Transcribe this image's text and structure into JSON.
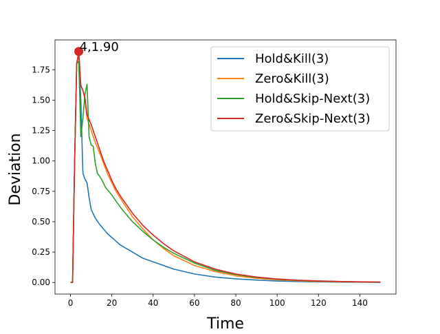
{
  "chart_data": {
    "type": "line",
    "title": "",
    "xlabel": "Time",
    "ylabel": "Deviation",
    "xlim": [
      -7.5,
      157.5
    ],
    "ylim": [
      -0.095,
      1.995
    ],
    "xticks": [
      0,
      20,
      40,
      60,
      80,
      100,
      120,
      140
    ],
    "yticks": [
      0.0,
      0.25,
      0.5,
      0.75,
      1.0,
      1.25,
      1.5,
      1.75
    ],
    "ytick_labels": [
      "0.00",
      "0.25",
      "0.50",
      "0.75",
      "1.00",
      "1.25",
      "1.50",
      "1.75"
    ],
    "grid": false,
    "legend_position": "top-right",
    "series": [
      {
        "name": "Hold&Kill(3)",
        "color": "#1f77b4",
        "points": [
          [
            0,
            0
          ],
          [
            1,
            0
          ],
          [
            2,
            1.0
          ],
          [
            3,
            1.8
          ],
          [
            4,
            1.88
          ],
          [
            5,
            1.5
          ],
          [
            6,
            0.9
          ],
          [
            7,
            0.85
          ],
          [
            8,
            0.82
          ],
          [
            9,
            0.7
          ],
          [
            10,
            0.6
          ],
          [
            12,
            0.53
          ],
          [
            14,
            0.48
          ],
          [
            16,
            0.44
          ],
          [
            18,
            0.4
          ],
          [
            20,
            0.37
          ],
          [
            22,
            0.34
          ],
          [
            24,
            0.31
          ],
          [
            26,
            0.29
          ],
          [
            30,
            0.25
          ],
          [
            35,
            0.2
          ],
          [
            40,
            0.17
          ],
          [
            50,
            0.11
          ],
          [
            60,
            0.07
          ],
          [
            70,
            0.045
          ],
          [
            80,
            0.03
          ],
          [
            90,
            0.02
          ],
          [
            100,
            0.012
          ],
          [
            110,
            0.008
          ],
          [
            120,
            0.005
          ],
          [
            130,
            0.003
          ],
          [
            140,
            0.002
          ],
          [
            150,
            0.001
          ]
        ]
      },
      {
        "name": "Zero&Kill(3)",
        "color": "#ff7f0e",
        "points": [
          [
            0,
            0
          ],
          [
            1,
            0
          ],
          [
            2,
            1.0
          ],
          [
            3,
            1.8
          ],
          [
            4,
            1.88
          ],
          [
            5,
            1.62
          ],
          [
            6,
            1.58
          ],
          [
            7,
            1.5
          ],
          [
            8,
            1.35
          ],
          [
            10,
            1.25
          ],
          [
            12,
            1.15
          ],
          [
            14,
            1.07
          ],
          [
            16,
            0.98
          ],
          [
            18,
            0.89
          ],
          [
            20,
            0.82
          ],
          [
            22,
            0.75
          ],
          [
            25,
            0.67
          ],
          [
            30,
            0.54
          ],
          [
            35,
            0.44
          ],
          [
            40,
            0.35
          ],
          [
            45,
            0.28
          ],
          [
            50,
            0.22
          ],
          [
            60,
            0.14
          ],
          [
            70,
            0.09
          ],
          [
            80,
            0.055
          ],
          [
            90,
            0.035
          ],
          [
            100,
            0.022
          ],
          [
            110,
            0.014
          ],
          [
            120,
            0.009
          ],
          [
            130,
            0.006
          ],
          [
            140,
            0.004
          ],
          [
            150,
            0.003
          ]
        ]
      },
      {
        "name": "Hold&Skip-Next(3)",
        "color": "#2ca02c",
        "points": [
          [
            0,
            0
          ],
          [
            1,
            0
          ],
          [
            2,
            1.0
          ],
          [
            3,
            1.8
          ],
          [
            4,
            1.82
          ],
          [
            5,
            1.2
          ],
          [
            6,
            1.35
          ],
          [
            7,
            1.55
          ],
          [
            8,
            1.63
          ],
          [
            9,
            1.2
          ],
          [
            10,
            1.13
          ],
          [
            11,
            1.12
          ],
          [
            12,
            0.98
          ],
          [
            13,
            0.9
          ],
          [
            15,
            0.85
          ],
          [
            17,
            0.78
          ],
          [
            20,
            0.72
          ],
          [
            22,
            0.67
          ],
          [
            25,
            0.6
          ],
          [
            30,
            0.5
          ],
          [
            35,
            0.42
          ],
          [
            40,
            0.35
          ],
          [
            45,
            0.29
          ],
          [
            50,
            0.24
          ],
          [
            60,
            0.16
          ],
          [
            70,
            0.1
          ],
          [
            80,
            0.065
          ],
          [
            90,
            0.042
          ],
          [
            100,
            0.027
          ],
          [
            110,
            0.018
          ],
          [
            120,
            0.012
          ],
          [
            130,
            0.008
          ],
          [
            140,
            0.005
          ],
          [
            150,
            0.003
          ]
        ]
      },
      {
        "name": "Zero&Skip-Next(3)",
        "color": "#d62728",
        "points": [
          [
            0,
            0
          ],
          [
            1,
            0
          ],
          [
            2,
            1.0
          ],
          [
            3,
            1.8
          ],
          [
            4,
            1.9
          ],
          [
            5,
            1.62
          ],
          [
            6,
            1.58
          ],
          [
            7,
            1.52
          ],
          [
            8,
            1.38
          ],
          [
            10,
            1.3
          ],
          [
            12,
            1.2
          ],
          [
            14,
            1.1
          ],
          [
            16,
            1.0
          ],
          [
            18,
            0.92
          ],
          [
            20,
            0.84
          ],
          [
            22,
            0.77
          ],
          [
            25,
            0.69
          ],
          [
            30,
            0.57
          ],
          [
            35,
            0.47
          ],
          [
            40,
            0.39
          ],
          [
            45,
            0.32
          ],
          [
            50,
            0.26
          ],
          [
            60,
            0.17
          ],
          [
            70,
            0.11
          ],
          [
            80,
            0.07
          ],
          [
            90,
            0.045
          ],
          [
            100,
            0.029
          ],
          [
            110,
            0.019
          ],
          [
            120,
            0.013
          ],
          [
            130,
            0.009
          ],
          [
            140,
            0.006
          ],
          [
            150,
            0.004
          ]
        ]
      }
    ],
    "annotation": {
      "text": "4,1.90",
      "x": 4,
      "y": 1.9,
      "color": "#d62728"
    }
  }
}
